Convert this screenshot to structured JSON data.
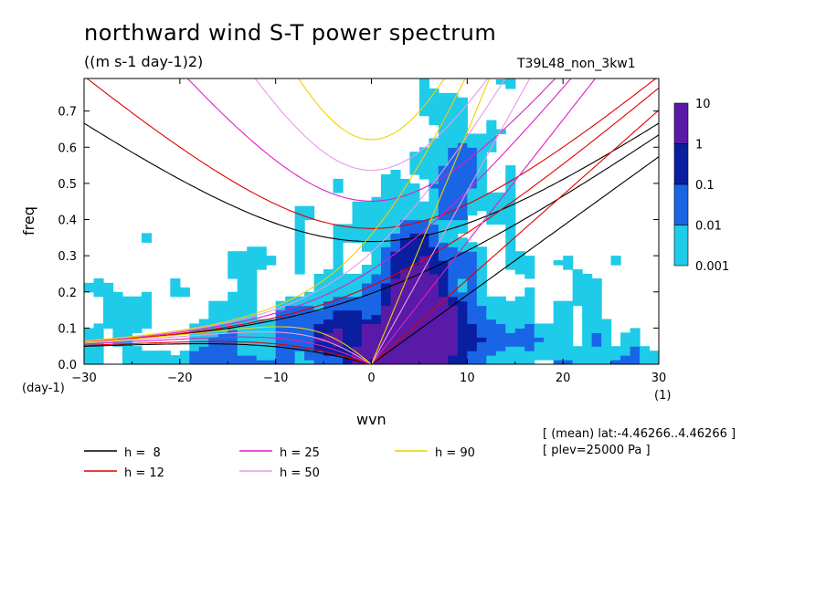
{
  "chart_data": {
    "type": "heatmap",
    "title": "northward wind S-T power spectrum",
    "subtitle": "((m s-1 day-1)2)",
    "experiment": "T39L48_non_3kw1",
    "xlabel": "wvn",
    "xunit": "(1)",
    "ylabel": "freq",
    "yunit": "(day-1)",
    "xlim": [
      -30,
      30
    ],
    "ylim": [
      0.0,
      0.79
    ],
    "xticks": [
      "-30",
      "-20",
      "-10",
      "0",
      "10",
      "20",
      "30"
    ],
    "yticks": [
      "0.0",
      "0.1",
      "0.2",
      "0.3",
      "0.4",
      "0.5",
      "0.6",
      "0.7"
    ],
    "colorbar": {
      "levels": [
        "10",
        "1",
        "0.1",
        "0.01",
        "0.001"
      ],
      "colors": [
        "#5a1aa8",
        "#0a1ea0",
        "#1a64e6",
        "#1ecbe8"
      ]
    },
    "dispersion_curves": [
      {
        "label": "h =  8",
        "h": 8,
        "color": "#000000"
      },
      {
        "label": "h = 12",
        "h": 12,
        "color": "#e00000"
      },
      {
        "label": "h = 25",
        "h": 25,
        "color": "#e01ec8"
      },
      {
        "label": "h = 50",
        "h": 50,
        "color": "#e89ae8"
      },
      {
        "label": "h = 90",
        "h": 90,
        "color": "#f0d000"
      }
    ],
    "annotations": [
      "[ (mean) lat:-4.46266..4.46266 ]",
      "[ plev=25000 Pa ]"
    ],
    "grid": false
  }
}
